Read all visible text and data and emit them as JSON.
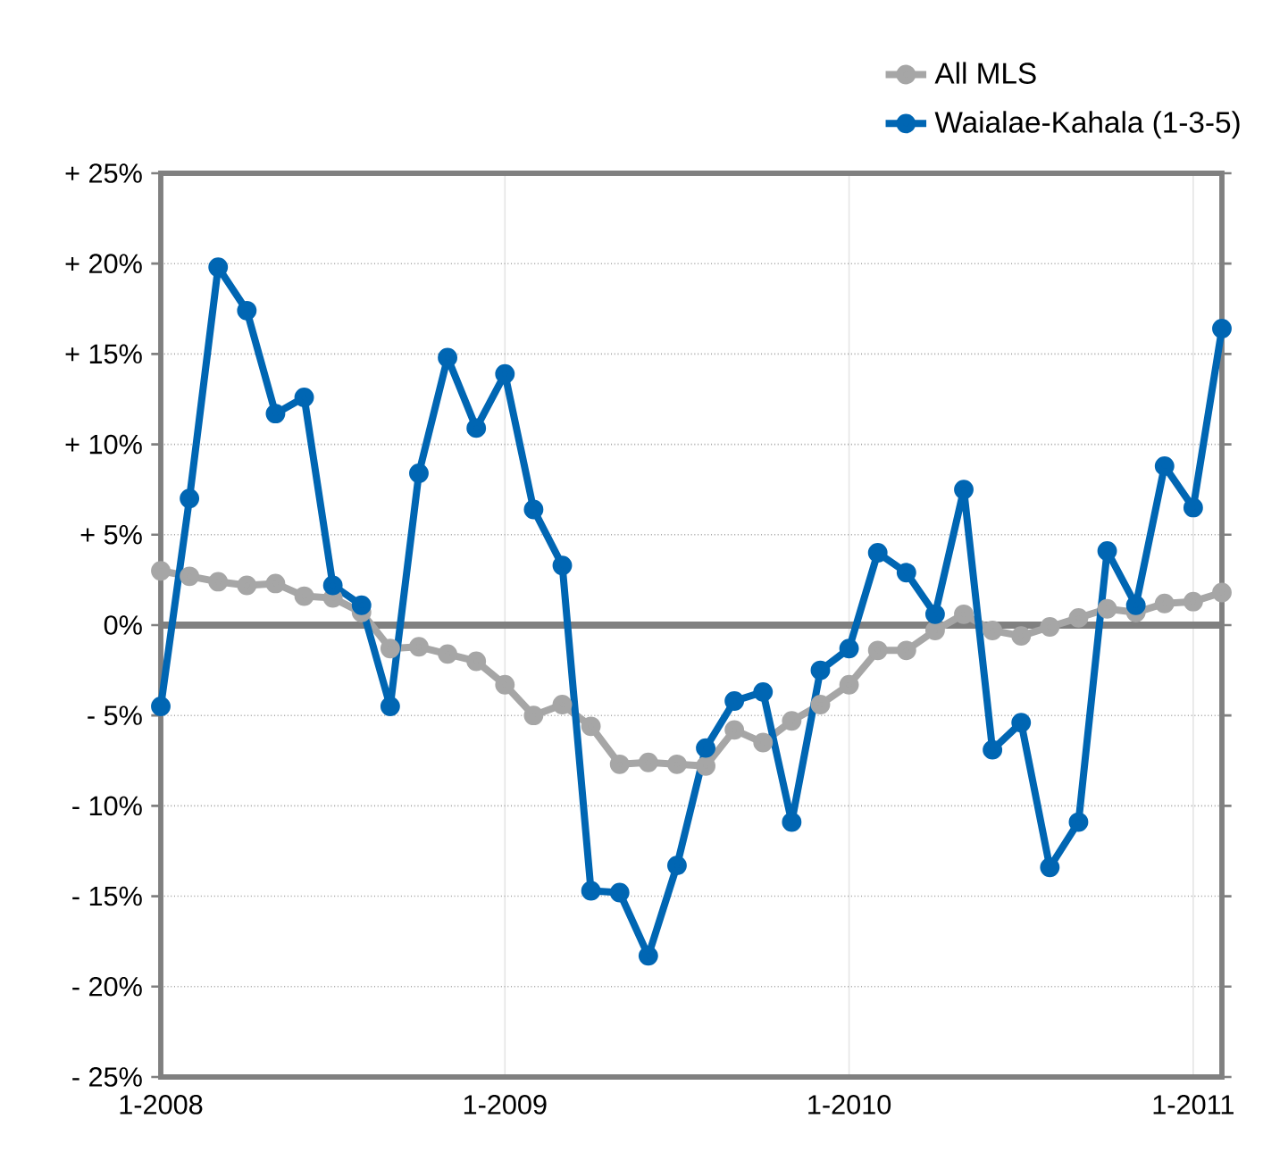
{
  "chart_data": {
    "type": "line",
    "x": [
      "2008-01",
      "2008-02",
      "2008-03",
      "2008-04",
      "2008-05",
      "2008-06",
      "2008-07",
      "2008-08",
      "2008-09",
      "2008-10",
      "2008-11",
      "2008-12",
      "2009-01",
      "2009-02",
      "2009-03",
      "2009-04",
      "2009-05",
      "2009-06",
      "2009-07",
      "2009-08",
      "2009-09",
      "2009-10",
      "2009-11",
      "2009-12",
      "2010-01",
      "2010-02",
      "2010-03",
      "2010-04",
      "2010-05",
      "2010-06",
      "2010-07",
      "2010-08",
      "2010-09",
      "2010-10",
      "2010-11",
      "2010-12",
      "2011-01",
      "2011-02"
    ],
    "series": [
      {
        "name": "All MLS",
        "color": "#a6a6a6",
        "values": [
          3.0,
          2.7,
          2.4,
          2.2,
          2.3,
          1.6,
          1.5,
          0.7,
          -1.3,
          -1.2,
          -1.6,
          -2.0,
          -3.3,
          -5.0,
          -4.4,
          -5.6,
          -7.7,
          -7.6,
          -7.7,
          -7.8,
          -5.8,
          -6.5,
          -5.3,
          -4.4,
          -3.3,
          -1.4,
          -1.4,
          -0.3,
          0.6,
          -0.3,
          -0.6,
          -0.1,
          0.4,
          0.9,
          0.7,
          1.2,
          1.3,
          1.8
        ]
      },
      {
        "name": "Waialae-Kahala (1-3-5)",
        "color": "#0066b3",
        "values": [
          -4.5,
          7.0,
          19.8,
          17.4,
          11.7,
          12.6,
          2.2,
          1.1,
          -4.5,
          8.4,
          14.8,
          10.9,
          13.9,
          6.4,
          3.3,
          -14.7,
          -14.8,
          -18.3,
          -13.3,
          -6.8,
          -4.2,
          -3.7,
          -10.9,
          -2.5,
          -1.3,
          4.0,
          2.9,
          0.6,
          7.5,
          -6.9,
          -5.4,
          -13.4,
          -10.9,
          4.1,
          1.1,
          8.8,
          6.5,
          16.4
        ]
      }
    ],
    "xlim": [
      "2008-01",
      "2011-02"
    ],
    "xticks": [
      {
        "value": "2008-01",
        "label": "1-2008"
      },
      {
        "value": "2009-01",
        "label": "1-2009"
      },
      {
        "value": "2010-01",
        "label": "1-2010"
      },
      {
        "value": "2011-01",
        "label": "1-2011"
      }
    ],
    "ylim": [
      -25,
      25
    ],
    "yticks": [
      {
        "value": -25,
        "label": "- 25%"
      },
      {
        "value": -20,
        "label": "- 20%"
      },
      {
        "value": -15,
        "label": "- 15%"
      },
      {
        "value": -10,
        "label": "- 10%"
      },
      {
        "value": -5,
        "label": "- 5%"
      },
      {
        "value": 0,
        "label": "0%"
      },
      {
        "value": 5,
        "label": "+ 5%"
      },
      {
        "value": 10,
        "label": "+ 10%"
      },
      {
        "value": 15,
        "label": "+ 15%"
      },
      {
        "value": 20,
        "label": "+ 20%"
      },
      {
        "value": 25,
        "label": "+ 25%"
      }
    ],
    "ref_lines": [
      {
        "axis": "y",
        "value": 0,
        "color": "#808080"
      }
    ],
    "grid": true,
    "legend": "top right",
    "marker": "circle",
    "line_style": "solid"
  }
}
